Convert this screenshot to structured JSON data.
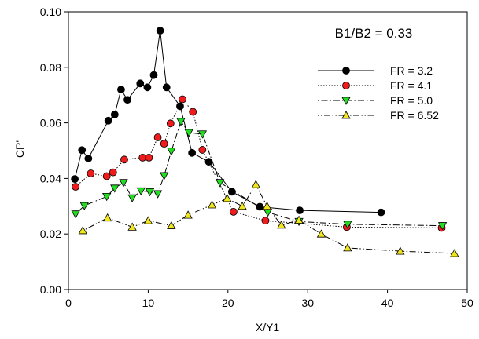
{
  "chart_data": {
    "type": "line",
    "annotation": "B1/B2 = 0.33",
    "xlabel": "X/Y1",
    "ylabel": "CP'",
    "xlim": [
      0,
      50
    ],
    "ylim": [
      0,
      0.1
    ],
    "xticks": [
      "0",
      "10",
      "20",
      "30",
      "40",
      "50"
    ],
    "yticks": [
      "0.00",
      "0.02",
      "0.04",
      "0.06",
      "0.08",
      "0.10"
    ],
    "grid": false,
    "legend_position": "top-right",
    "series": [
      {
        "name": "FR = 3.2",
        "marker": "circle",
        "color": "#000000",
        "line_style": "solid",
        "x": [
          0.8,
          1.7,
          2.5,
          5.0,
          5.8,
          6.6,
          7.4,
          9.0,
          9.9,
          10.7,
          11.5,
          12.3,
          14.0,
          15.5,
          17.6,
          20.5,
          24.0,
          29.0,
          39.2
        ],
        "y": [
          0.0398,
          0.0502,
          0.0472,
          0.0608,
          0.063,
          0.072,
          0.0683,
          0.0742,
          0.0728,
          0.0772,
          0.0932,
          0.0728,
          0.066,
          0.0492,
          0.046,
          0.0352,
          0.0298,
          0.0285,
          0.0278
        ]
      },
      {
        "name": "FR = 4.1",
        "marker": "circle",
        "color": "#ee1c1c",
        "line_style": "dotted",
        "x": [
          0.9,
          2.8,
          4.8,
          5.6,
          7.0,
          9.3,
          10.1,
          11.2,
          12.0,
          12.8,
          14.3,
          15.6,
          16.8,
          20.7,
          24.7,
          34.9,
          46.8
        ],
        "y": [
          0.037,
          0.0418,
          0.0408,
          0.0422,
          0.0468,
          0.0475,
          0.0475,
          0.0548,
          0.0525,
          0.0598,
          0.0685,
          0.064,
          0.0503,
          0.028,
          0.0248,
          0.0225,
          0.0222
        ]
      },
      {
        "name": "FR = 5.0",
        "marker": "triangle-down",
        "color": "#22dd22",
        "line_style": "dashdot",
        "x": [
          0.9,
          2.0,
          4.8,
          5.8,
          6.9,
          8.0,
          9.1,
          10.2,
          11.2,
          12.0,
          12.9,
          14.1,
          15.1,
          16.8,
          19.0,
          25.0,
          28.9,
          35.0,
          46.9
        ],
        "y": [
          0.0272,
          0.0302,
          0.0335,
          0.0365,
          0.0385,
          0.033,
          0.0355,
          0.0352,
          0.0345,
          0.041,
          0.0498,
          0.0605,
          0.0565,
          0.056,
          0.0385,
          0.0278,
          0.0245,
          0.0235,
          0.023
        ]
      },
      {
        "name": "FR = 6.52",
        "marker": "triangle-up",
        "color": "#f0e61e",
        "line_style": "dashdotdot",
        "x": [
          1.8,
          4.9,
          8.0,
          10.0,
          12.9,
          15.0,
          18.0,
          19.9,
          21.8,
          23.5,
          24.9,
          26.7,
          28.9,
          31.7,
          35.0,
          41.6,
          48.4
        ],
        "y": [
          0.0212,
          0.0258,
          0.0225,
          0.0248,
          0.023,
          0.0268,
          0.0305,
          0.0328,
          0.03,
          0.0378,
          0.03,
          0.0232,
          0.025,
          0.02,
          0.015,
          0.0138,
          0.013
        ]
      }
    ]
  }
}
